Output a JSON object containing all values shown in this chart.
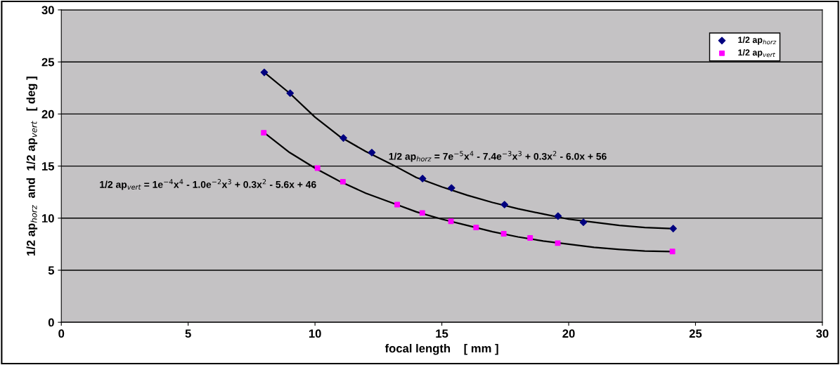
{
  "chart_data": {
    "type": "scatter",
    "xlabel": "focal length    [ mm ]",
    "ylabel": "1/2 ap$_{horz}$  and  1/2 ap$_{vert}$   [ deg ]",
    "xlim": [
      0,
      30
    ],
    "xticks": [
      0,
      5,
      10,
      15,
      20,
      25,
      30
    ],
    "ylim": [
      0,
      30
    ],
    "yticks": [
      0,
      5,
      10,
      15,
      20,
      25,
      30
    ],
    "grid": "y",
    "legend": "top right",
    "series": [
      {
        "name": "1/2 ap$_{horz}$",
        "color": "#000080",
        "marker": "diamond",
        "x": [
          8,
          9.02,
          11.12,
          12.24,
          14.24,
          15.38,
          17.47,
          19.58,
          20.58,
          24.12
        ],
        "values": [
          24.0,
          22.0,
          17.7,
          16.3,
          13.8,
          12.9,
          11.3,
          10.2,
          9.6,
          9.0
        ]
      },
      {
        "name": "1/2 ap$_{vert}$",
        "color": "#ff00ff",
        "marker": "square",
        "x": [
          7.98,
          10.1,
          11.1,
          13.24,
          14.23,
          15.36,
          16.35,
          17.44,
          18.48,
          19.57,
          24.09
        ],
        "values": [
          18.2,
          14.8,
          13.5,
          11.3,
          10.5,
          9.7,
          9.1,
          8.5,
          8.1,
          7.6,
          6.8
        ]
      },
      {
        "type": "line",
        "color": "#000000",
        "marker": "none",
        "x": [
          8,
          9,
          10,
          11,
          12,
          13,
          14,
          15,
          16,
          17,
          18,
          19,
          20,
          21,
          22,
          23,
          24
        ],
        "values": [
          24.0,
          22.0,
          19.7,
          17.8,
          16.4,
          15.2,
          13.9,
          13.0,
          12.2,
          11.5,
          10.9,
          10.4,
          9.9,
          9.6,
          9.3,
          9.1,
          9.0
        ]
      },
      {
        "type": "line",
        "color": "#000000",
        "marker": "none",
        "x": [
          8,
          9,
          10,
          11,
          12,
          13,
          14,
          15,
          16,
          17,
          18,
          19,
          20,
          21,
          22,
          23,
          24
        ],
        "values": [
          18.2,
          16.3,
          14.8,
          13.5,
          12.4,
          11.5,
          10.6,
          9.9,
          9.3,
          8.7,
          8.2,
          7.8,
          7.5,
          7.2,
          7.0,
          6.85,
          6.8
        ]
      }
    ],
    "annotations": [
      "1/2 ap$_{horz}$ = 7e$^{−5}$x$^{4}$ - 7.4e$^{−3}$x$^{3}$ + 0.3x$^{2}$ - 6.0x + 56",
      "1/2 ap$_{vert}$ = 1e$^{−4}$x$^{4}$ - 1.0e$^{−2}$x$^{3}$ + 0.3x$^{2}$ - 5.6x + 46"
    ]
  }
}
